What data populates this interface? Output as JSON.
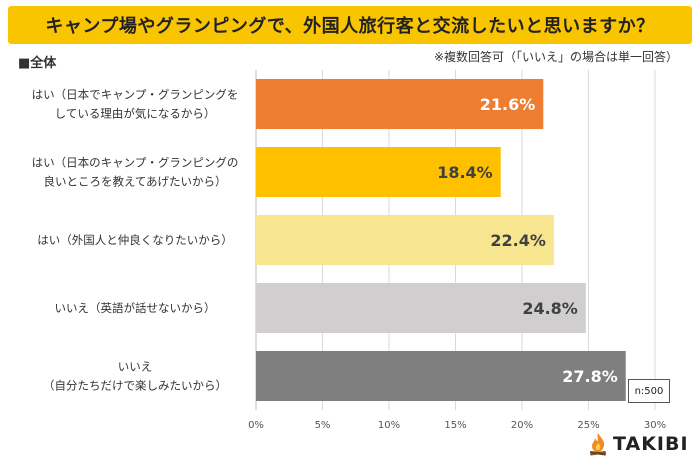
{
  "header": {
    "title": "キャンプ場やグランピングで、外国人旅行客と交流したいと思いますか？"
  },
  "group_label": "■全体",
  "note": "※複数回答可（「いいえ」の場合は単一回答）",
  "sample_size": "n:500",
  "brand": {
    "name": "TAKIBI"
  },
  "chart_data": {
    "type": "bar",
    "orientation": "horizontal",
    "categories": [
      [
        "はい（日本でキャンプ・グランピングを",
        "している理由が気になるから）"
      ],
      [
        "はい（日本のキャンプ・グランピングの",
        "良いところを教えてあげたいから）"
      ],
      [
        "はい（外国人と仲良くなりたいから）"
      ],
      [
        "いいえ（英語が話せないから）"
      ],
      [
        "いいえ",
        "（自分たちだけで楽しみたいから）"
      ]
    ],
    "values": [
      21.6,
      18.4,
      22.4,
      24.8,
      27.8
    ],
    "value_labels": [
      "21.6%",
      "18.4%",
      "22.4%",
      "24.8%",
      "27.8%"
    ],
    "colors": [
      "#ed7d31",
      "#ffc000",
      "#f7e68f",
      "#d0cece",
      "#7f7f7f"
    ],
    "label_colors": [
      "#ffffff",
      "#404040",
      "#404040",
      "#404040",
      "#ffffff"
    ],
    "xlim": [
      0,
      30
    ],
    "ticks": [
      0,
      5,
      10,
      15,
      20,
      25,
      30
    ],
    "tick_labels": [
      "0%",
      "5%",
      "10%",
      "15%",
      "20%",
      "25%",
      "30%"
    ],
    "grid": true
  }
}
